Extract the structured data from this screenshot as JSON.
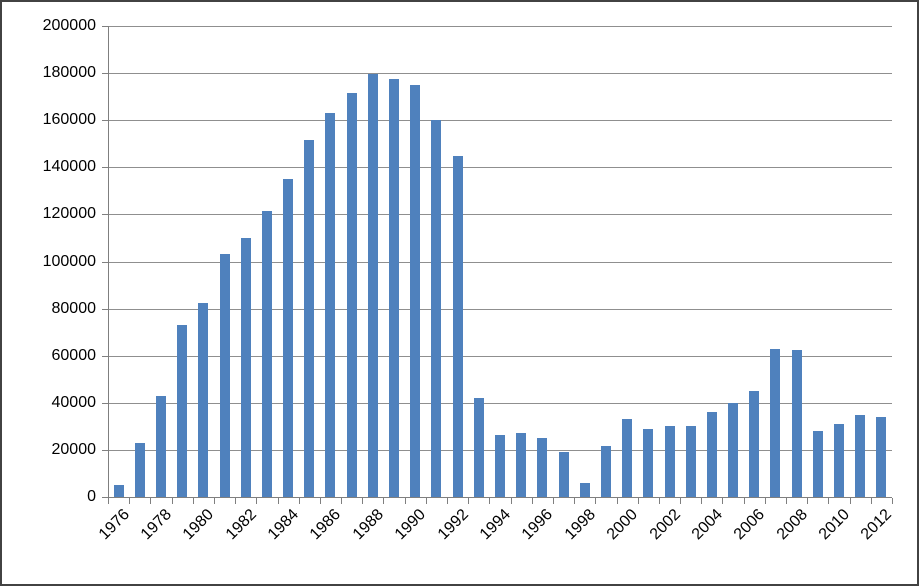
{
  "window": {
    "background": "#ffffff",
    "border_color": "#424242"
  },
  "chart_data": {
    "type": "bar",
    "title": "",
    "xlabel": "",
    "ylabel": "",
    "categories": [
      "1976",
      "1977",
      "1978",
      "1979",
      "1980",
      "1981",
      "1982",
      "1983",
      "1984",
      "1985",
      "1986",
      "1987",
      "1988",
      "1989",
      "1990",
      "1991",
      "1992",
      "1993",
      "1994",
      "1995",
      "1996",
      "1997",
      "1998",
      "1999",
      "2000",
      "2001",
      "2002",
      "2003",
      "2004",
      "2005",
      "2006",
      "2007",
      "2008",
      "2009",
      "2010",
      "2011",
      "2012"
    ],
    "values": [
      5000,
      23000,
      43000,
      73000,
      82500,
      103000,
      110000,
      121500,
      135000,
      151500,
      163000,
      171500,
      179500,
      177500,
      175000,
      160000,
      145000,
      42000,
      26500,
      27000,
      25000,
      19000,
      6000,
      21500,
      33000,
      29000,
      30000,
      30000,
      36000,
      40000,
      45000,
      63000,
      62500,
      28000,
      31000,
      35000,
      34000
    ],
    "ylim": [
      0,
      200000
    ],
    "ytick_interval": 20000,
    "ytick_labels": [
      "0",
      "20000",
      "40000",
      "60000",
      "80000",
      "100000",
      "120000",
      "140000",
      "160000",
      "180000",
      "200000"
    ],
    "xtick_labels_shown": [
      "1976",
      "1978",
      "1980",
      "1982",
      "1984",
      "1986",
      "1988",
      "1990",
      "1992",
      "1994",
      "1996",
      "1998",
      "2000",
      "2002",
      "2004",
      "2006",
      "2008",
      "2010",
      "2012"
    ],
    "xtick_label_interval": 2,
    "grid": true,
    "legend": false,
    "bar_color": "#4F81BD",
    "gridline_color": "#8f8f8f",
    "axis_color": "#7f7f7f",
    "text_color": "#000000"
  }
}
